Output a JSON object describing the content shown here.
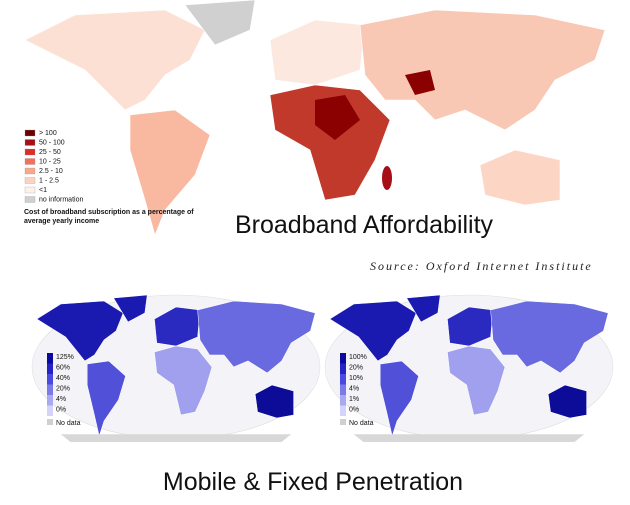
{
  "affordability_map": {
    "legend": [
      {
        "label": "> 100",
        "color": "#6b0000"
      },
      {
        "label": "50 - 100",
        "color": "#a50f15"
      },
      {
        "label": "25 - 50",
        "color": "#de2d26"
      },
      {
        "label": "10 - 25",
        "color": "#f4705a"
      },
      {
        "label": "2.5 - 10",
        "color": "#f9a88c"
      },
      {
        "label": "1 - 2.5",
        "color": "#fcd3c1"
      },
      {
        "label": "<1",
        "color": "#fff0ea"
      },
      {
        "label": "no information",
        "color": "#d0d0d0"
      }
    ],
    "caption": "Cost of broadband subscription as a percentage of average yearly income",
    "title": "Broadband Affordability",
    "source": "Source: Oxford Internet Institute"
  },
  "penetration_maps": [
    {
      "legend": [
        {
          "label": "125%",
          "color": "#0a0aa0"
        },
        {
          "label": "60%",
          "color": "#2323c8"
        },
        {
          "label": "40%",
          "color": "#4a4ae0"
        },
        {
          "label": "20%",
          "color": "#7a7aea"
        },
        {
          "label": "4%",
          "color": "#a9a9f2"
        },
        {
          "label": "0%",
          "color": "#d4d4fa"
        },
        {
          "label": "No data",
          "color": "#d0d0d0"
        }
      ]
    },
    {
      "legend": [
        {
          "label": "100%",
          "color": "#0a0aa0"
        },
        {
          "label": "20%",
          "color": "#2323c8"
        },
        {
          "label": "10%",
          "color": "#4a4ae0"
        },
        {
          "label": "4%",
          "color": "#7a7aea"
        },
        {
          "label": "1%",
          "color": "#a9a9f2"
        },
        {
          "label": "0%",
          "color": "#d4d4fa"
        },
        {
          "label": "No data",
          "color": "#d0d0d0"
        }
      ]
    }
  ],
  "penetration_title": "Mobile & Fixed Penetration"
}
